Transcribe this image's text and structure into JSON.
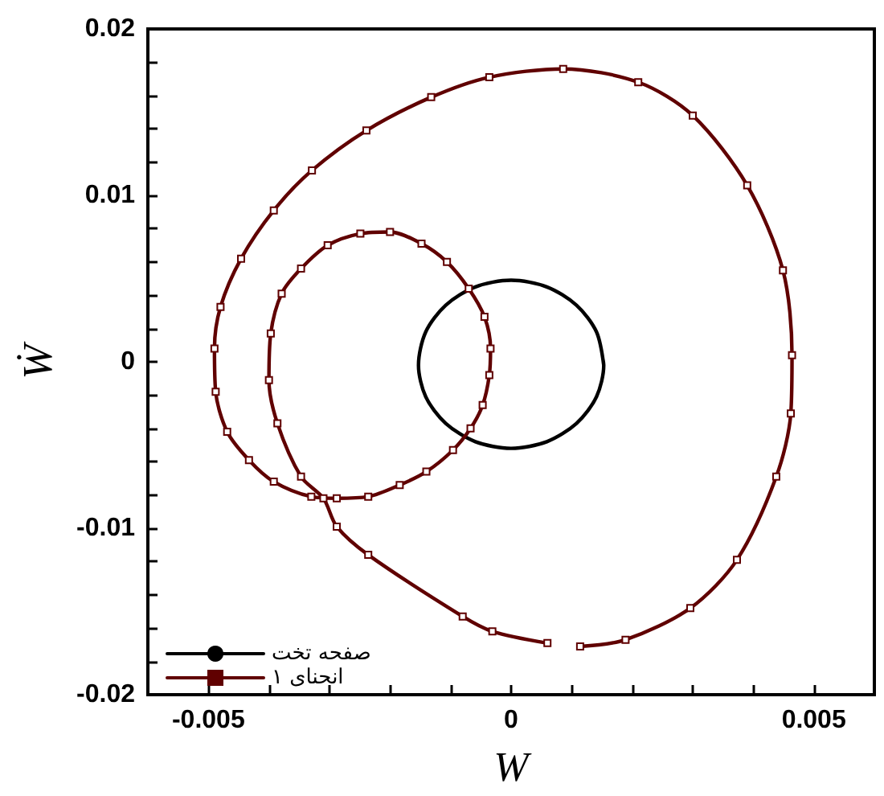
{
  "chart_data": {
    "type": "line",
    "xlabel": "W",
    "ylabel": "Ẇ",
    "xlim": [
      -0.006,
      0.006
    ],
    "xticks": [
      {
        "value": -0.005,
        "label": "-0.005"
      },
      {
        "value": -0.004,
        "label": null
      },
      {
        "value": -0.003,
        "label": null
      },
      {
        "value": -0.002,
        "label": null
      },
      {
        "value": -0.001,
        "label": null
      },
      {
        "value": 0,
        "label": "0"
      },
      {
        "value": 0.001,
        "label": null
      },
      {
        "value": 0.002,
        "label": null
      },
      {
        "value": 0.003,
        "label": null
      },
      {
        "value": 0.004,
        "label": null
      },
      {
        "value": 0.005,
        "label": "0.005"
      }
    ],
    "ylim": [
      -0.02,
      0.02
    ],
    "yticks": [
      {
        "value": -0.02,
        "label": "-0.02"
      },
      {
        "value": -0.018,
        "label": null
      },
      {
        "value": -0.016,
        "label": null
      },
      {
        "value": -0.014,
        "label": null
      },
      {
        "value": -0.012,
        "label": null
      },
      {
        "value": -0.01,
        "label": "-0.01"
      },
      {
        "value": -0.008,
        "label": null
      },
      {
        "value": -0.006,
        "label": null
      },
      {
        "value": -0.004,
        "label": null
      },
      {
        "value": -0.002,
        "label": null
      },
      {
        "value": 0,
        "label": "0"
      },
      {
        "value": 0.002,
        "label": null
      },
      {
        "value": 0.004,
        "label": null
      },
      {
        "value": 0.006,
        "label": null
      },
      {
        "value": 0.008,
        "label": null
      },
      {
        "value": 0.01,
        "label": "0.01"
      },
      {
        "value": 0.012,
        "label": null
      },
      {
        "value": 0.014,
        "label": null
      },
      {
        "value": 0.016,
        "label": null
      },
      {
        "value": 0.018,
        "label": null
      },
      {
        "value": 0.02,
        "label": "0.02"
      }
    ],
    "grid": false,
    "legend": "bottom left",
    "series": [
      {
        "name": "صفحه تخت",
        "color": "#000000",
        "marker": "none",
        "x": [
          0.00153,
          0.00141,
          0.00108,
          0.00059,
          0,
          -0.00059,
          -0.00108,
          -0.00141,
          -0.00153,
          -0.00141,
          -0.00108,
          -0.00059,
          0,
          0.00059,
          0.00108,
          0.00141,
          0.00153,
          0.00152
        ],
        "values": [
          -0.0002,
          0.0018,
          0.0034,
          0.0045,
          0.0049,
          0.0045,
          0.0034,
          0.0018,
          -0.0002,
          -0.0021,
          -0.0037,
          -0.0048,
          -0.0052,
          -0.0048,
          -0.0037,
          -0.0021,
          -0.0002,
          0.0001
        ]
      },
      {
        "name": "انحنای ۱",
        "color": "#600000",
        "marker": "square",
        "x": [
          0.0006,
          -0.00031,
          -0.0008,
          -0.00236,
          -0.00288,
          -0.0031,
          -0.00347,
          -0.00386,
          -0.004,
          -0.00397,
          -0.00379,
          -0.00347,
          -0.00303,
          -0.00249,
          -0.002,
          -0.00148,
          -0.00106,
          -0.0007,
          -0.00044,
          -0.00034,
          -0.00036,
          -0.00047,
          -0.00067,
          -0.00096,
          -0.0014,
          -0.00184,
          -0.00236,
          -0.00288,
          -0.0033,
          -0.00392,
          -0.00433,
          -0.00469,
          -0.00488,
          -0.0049,
          -0.0048,
          -0.00446,
          -0.00392,
          -0.00329,
          -0.00239,
          -0.00132,
          -0.00036,
          0.00086,
          0.0021,
          0.003,
          0.0039,
          0.00449,
          0.00464,
          0.00462,
          0.00438,
          0.00373,
          0.00296,
          0.00189,
          0.00114
        ],
        "values": [
          -0.0169,
          -0.0162,
          -0.0153,
          -0.0116,
          -0.0099,
          -0.0082,
          -0.0069,
          -0.0037,
          -0.0011,
          0.0017,
          0.0041,
          0.0056,
          0.007,
          0.0077,
          0.0078,
          0.0071,
          0.006,
          0.0044,
          0.0027,
          0.0008,
          -0.0008,
          -0.0026,
          -0.004,
          -0.0053,
          -0.0066,
          -0.0074,
          -0.0081,
          -0.0082,
          -0.0081,
          -0.0072,
          -0.0059,
          -0.0042,
          -0.0018,
          0.0008,
          0.0033,
          0.0062,
          0.0091,
          0.0115,
          0.0139,
          0.0159,
          0.0171,
          0.0176,
          0.0168,
          0.0148,
          0.0106,
          0.0055,
          0.0004,
          -0.0031,
          -0.0069,
          -0.0119,
          -0.0148,
          -0.0167,
          -0.0171
        ]
      }
    ]
  }
}
